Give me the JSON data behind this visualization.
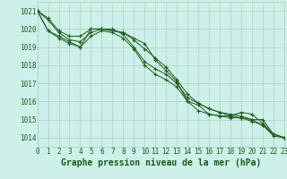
{
  "title": "Graphe pression niveau de la mer (hPa)",
  "background_color": "#cdf0e8",
  "grid_color": "#a8cfc4",
  "line_color": "#1a5c1a",
  "tick_fontsize": 5.5,
  "xlabel_fontsize": 7.0,
  "xlim": [
    0,
    23
  ],
  "ylim": [
    1013.5,
    1021.5
  ],
  "yticks": [
    1014,
    1015,
    1016,
    1017,
    1018,
    1019,
    1020,
    1021
  ],
  "xticks": [
    0,
    1,
    2,
    3,
    4,
    5,
    6,
    7,
    8,
    9,
    10,
    11,
    12,
    13,
    14,
    15,
    16,
    17,
    18,
    19,
    20,
    21,
    22,
    23
  ],
  "series": [
    [
      1021.0,
      1020.6,
      1019.9,
      1019.6,
      1019.6,
      1020.0,
      1020.0,
      1019.9,
      1019.8,
      1019.5,
      1019.2,
      1018.3,
      1017.7,
      1017.1,
      1016.0,
      1015.8,
      1015.3,
      1015.2,
      1015.2,
      1015.4,
      1015.3,
      1014.8,
      1014.2,
      1014.0
    ],
    [
      1021.0,
      1019.9,
      1019.6,
      1019.3,
      1019.0,
      1020.0,
      1020.0,
      1020.0,
      1019.7,
      1019.0,
      1018.2,
      1017.8,
      1017.5,
      1017.0,
      1016.2,
      1015.9,
      1015.6,
      1015.4,
      1015.3,
      1015.2,
      1015.0,
      1015.0,
      1014.2,
      1014.0
    ],
    [
      1021.0,
      1019.9,
      1019.5,
      1019.2,
      1019.0,
      1019.6,
      1019.9,
      1019.8,
      1019.5,
      1018.9,
      1018.0,
      1017.5,
      1017.2,
      1016.8,
      1016.0,
      1015.5,
      1015.3,
      1015.2,
      1015.1,
      1015.1,
      1015.0,
      1014.7,
      1014.1,
      1014.0
    ],
    [
      1021.0,
      1020.5,
      1019.8,
      1019.4,
      1019.3,
      1019.8,
      1020.0,
      1019.9,
      1019.8,
      1019.4,
      1018.9,
      1018.4,
      1017.9,
      1017.2,
      1016.4,
      1015.9,
      1015.6,
      1015.4,
      1015.2,
      1015.1,
      1014.9,
      1014.7,
      1014.2,
      1014.0
    ]
  ]
}
